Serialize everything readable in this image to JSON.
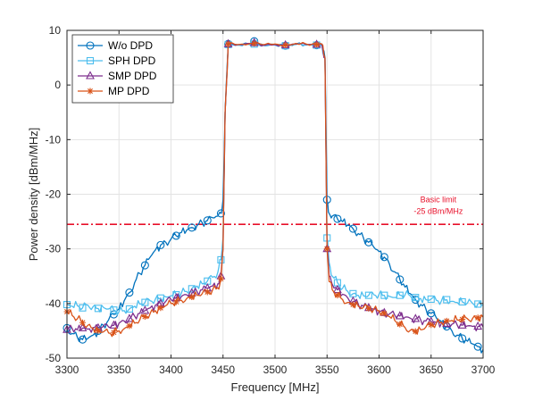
{
  "chart_data": {
    "type": "line",
    "xlabel": "Frequency [MHz]",
    "ylabel": "Power density [dBm/MHz]",
    "xlim": [
      3300,
      3700
    ],
    "ylim": [
      -50,
      10
    ],
    "xticks": [
      3300,
      3350,
      3400,
      3450,
      3500,
      3550,
      3600,
      3650,
      3700
    ],
    "yticks": [
      -50,
      -40,
      -30,
      -20,
      -10,
      0,
      10
    ],
    "grid": true,
    "legend_position": "top-left",
    "series": [
      {
        "name": "W/o DPD",
        "color": "#0072BD",
        "marker": "circle",
        "x": [
          3300,
          3305,
          3310,
          3315,
          3320,
          3325,
          3330,
          3335,
          3340,
          3345,
          3350,
          3355,
          3360,
          3365,
          3370,
          3375,
          3380,
          3385,
          3390,
          3395,
          3400,
          3405,
          3410,
          3415,
          3420,
          3425,
          3430,
          3435,
          3440,
          3445,
          3448,
          3450,
          3452,
          3455,
          3465,
          3475,
          3480,
          3490,
          3500,
          3510,
          3520,
          3530,
          3540,
          3545,
          3548,
          3550,
          3552,
          3555,
          3560,
          3565,
          3570,
          3575,
          3580,
          3585,
          3590,
          3595,
          3600,
          3605,
          3610,
          3615,
          3620,
          3625,
          3630,
          3635,
          3640,
          3645,
          3650,
          3655,
          3660,
          3665,
          3670,
          3675,
          3680,
          3685,
          3690,
          3695,
          3700
        ],
        "y": [
          -44.5,
          -45.5,
          -46.2,
          -46.6,
          -46.4,
          -45.8,
          -45,
          -44,
          -43,
          -42,
          -41,
          -39.5,
          -38,
          -36.2,
          -34.5,
          -33,
          -31.5,
          -30.2,
          -29.3,
          -28.8,
          -28.2,
          -27.6,
          -27,
          -26.6,
          -26.1,
          -25.7,
          -25.2,
          -24.8,
          -24.3,
          -24,
          -23.5,
          -21,
          -5,
          7.5,
          7.3,
          7.5,
          8,
          7.2,
          7.4,
          7.2,
          7.5,
          7.4,
          7.3,
          7.5,
          5,
          -21,
          -23.5,
          -24,
          -24.5,
          -25,
          -25.6,
          -26.3,
          -27.2,
          -28,
          -28.8,
          -29.7,
          -30.5,
          -31.5,
          -32.8,
          -34.2,
          -35.6,
          -37,
          -38.2,
          -39.3,
          -40.2,
          -41,
          -41.8,
          -42.6,
          -43.4,
          -44.2,
          -45,
          -45.8,
          -46.4,
          -46.9,
          -47.4,
          -47.9,
          -48.4
        ]
      },
      {
        "name": "SPH DPD",
        "color": "#4DBEEE",
        "marker": "square",
        "x": [
          3300,
          3305,
          3310,
          3315,
          3320,
          3325,
          3330,
          3335,
          3340,
          3345,
          3350,
          3355,
          3360,
          3365,
          3370,
          3375,
          3380,
          3385,
          3390,
          3395,
          3400,
          3405,
          3410,
          3415,
          3420,
          3425,
          3430,
          3435,
          3440,
          3445,
          3448,
          3450,
          3452,
          3455,
          3465,
          3475,
          3480,
          3490,
          3500,
          3510,
          3520,
          3530,
          3540,
          3545,
          3548,
          3550,
          3552,
          3555,
          3560,
          3565,
          3570,
          3575,
          3580,
          3585,
          3590,
          3595,
          3600,
          3605,
          3610,
          3615,
          3620,
          3625,
          3630,
          3635,
          3640,
          3645,
          3650,
          3655,
          3660,
          3665,
          3670,
          3675,
          3680,
          3685,
          3690,
          3695,
          3700
        ],
        "y": [
          -40.2,
          -40.5,
          -40.4,
          -40.8,
          -40.3,
          -40.6,
          -40.9,
          -40.7,
          -41,
          -41.2,
          -41.5,
          -41.3,
          -41,
          -40.5,
          -40.1,
          -39.8,
          -39.5,
          -39.2,
          -39,
          -38.8,
          -38.6,
          -38.4,
          -38.1,
          -37.8,
          -37.3,
          -36.8,
          -36.4,
          -35.9,
          -35.2,
          -34.3,
          -32,
          -28,
          -5,
          7.4,
          7.3,
          7.4,
          7.5,
          7.3,
          7.3,
          7.2,
          7.4,
          7.3,
          7.3,
          7.3,
          5,
          -28,
          -32.5,
          -35,
          -36.2,
          -37.2,
          -37.8,
          -38.2,
          -38.5,
          -38.6,
          -38.5,
          -38.4,
          -38.3,
          -38.5,
          -38.7,
          -38.9,
          -38.5,
          -38.4,
          -38.6,
          -38.9,
          -39.1,
          -39.3,
          -39.2,
          -39.4,
          -39.5,
          -39.3,
          -39.6,
          -39.8,
          -39.7,
          -39.9,
          -40,
          -40.1,
          -40.3
        ]
      },
      {
        "name": "SMP DPD",
        "color": "#7E2F8E",
        "marker": "triangle",
        "x": [
          3300,
          3305,
          3310,
          3315,
          3320,
          3325,
          3330,
          3335,
          3340,
          3345,
          3350,
          3355,
          3360,
          3365,
          3370,
          3375,
          3380,
          3385,
          3390,
          3395,
          3400,
          3405,
          3410,
          3415,
          3420,
          3425,
          3430,
          3435,
          3440,
          3445,
          3448,
          3450,
          3452,
          3455,
          3465,
          3475,
          3480,
          3490,
          3500,
          3510,
          3520,
          3530,
          3540,
          3545,
          3548,
          3550,
          3552,
          3555,
          3560,
          3565,
          3570,
          3575,
          3580,
          3585,
          3590,
          3595,
          3600,
          3605,
          3610,
          3615,
          3620,
          3625,
          3630,
          3635,
          3640,
          3645,
          3650,
          3655,
          3660,
          3665,
          3670,
          3675,
          3680,
          3685,
          3690,
          3695,
          3700
        ],
        "y": [
          -44.8,
          -44.6,
          -44.8,
          -44.5,
          -44.7,
          -44.4,
          -44.5,
          -44.2,
          -44.3,
          -44,
          -43.6,
          -43.2,
          -42.8,
          -42.3,
          -41.8,
          -41.3,
          -40.8,
          -40.3,
          -40,
          -39.6,
          -39.3,
          -39,
          -38.7,
          -38.4,
          -38.1,
          -37.8,
          -37.5,
          -37.2,
          -36.8,
          -36.4,
          -35,
          -30,
          -5,
          7.5,
          7.4,
          7.6,
          7.7,
          7.3,
          7.4,
          7.3,
          7.5,
          7.4,
          7.4,
          7.4,
          5,
          -30,
          -35,
          -36.5,
          -37.5,
          -38.3,
          -39,
          -39.6,
          -40.1,
          -40.5,
          -40.8,
          -41.1,
          -41.4,
          -41.7,
          -41.9,
          -42.1,
          -42.3,
          -42.5,
          -42.7,
          -42.8,
          -43,
          -43.2,
          -43.3,
          -43.5,
          -43.6,
          -43.7,
          -43.8,
          -43.9,
          -44,
          -44.1,
          -44.2,
          -44.2,
          -44.3
        ]
      },
      {
        "name": "MP DPD",
        "color": "#D95319",
        "marker": "asterisk",
        "x": [
          3300,
          3305,
          3310,
          3315,
          3320,
          3325,
          3330,
          3335,
          3340,
          3345,
          3350,
          3355,
          3360,
          3365,
          3370,
          3375,
          3380,
          3385,
          3390,
          3395,
          3400,
          3405,
          3410,
          3415,
          3420,
          3425,
          3430,
          3435,
          3440,
          3445,
          3448,
          3450,
          3452,
          3455,
          3465,
          3475,
          3480,
          3490,
          3500,
          3510,
          3520,
          3530,
          3540,
          3545,
          3548,
          3550,
          3552,
          3555,
          3560,
          3565,
          3570,
          3575,
          3580,
          3585,
          3590,
          3595,
          3600,
          3605,
          3610,
          3615,
          3620,
          3625,
          3630,
          3635,
          3640,
          3645,
          3650,
          3655,
          3660,
          3665,
          3670,
          3675,
          3680,
          3685,
          3690,
          3695,
          3700
        ],
        "y": [
          -41.5,
          -42.2,
          -42.8,
          -43.5,
          -44,
          -44.5,
          -45,
          -45.2,
          -45.4,
          -45.3,
          -45,
          -44.6,
          -44.1,
          -43.6,
          -43,
          -42.4,
          -41.8,
          -41.3,
          -40.8,
          -40.4,
          -40,
          -39.7,
          -39.4,
          -39.1,
          -38.8,
          -38.5,
          -38.2,
          -37.9,
          -37.5,
          -37.1,
          -35.5,
          -30,
          -5,
          7.5,
          7.4,
          7.5,
          7.6,
          7.4,
          7.5,
          7.3,
          7.6,
          7.5,
          7.4,
          7.5,
          5,
          -30,
          -36,
          -37.5,
          -38.5,
          -39.3,
          -39.8,
          -40.2,
          -40.5,
          -40.7,
          -40.9,
          -41,
          -41.3,
          -41.8,
          -42.4,
          -43.1,
          -43.8,
          -44.4,
          -44.9,
          -45.1,
          -44.8,
          -44.3,
          -43.9,
          -43.6,
          -43.4,
          -43.2,
          -43.1,
          -43,
          -42.9,
          -42.8,
          -42.7,
          -42.6,
          -42.5
        ]
      }
    ],
    "reference_line": {
      "y": -25.5,
      "x_start": 3300,
      "x_end": 3700,
      "color": "#E8102A",
      "style": "dash-dot"
    },
    "annotation": {
      "lines": [
        "Basic limit",
        "-25 dBm/MHz"
      ],
      "color": "#E8102A",
      "x": 3657,
      "y": -21.5
    }
  }
}
